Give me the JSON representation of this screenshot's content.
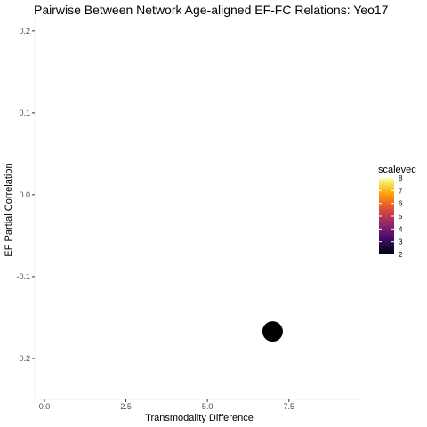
{
  "chart_data": {
    "type": "scatter",
    "title": "Pairwise Between Network Age-aligned EF-FC Relations: Yeo17",
    "xlabel": "Transmodality Difference",
    "ylabel": "EF Partial Correlation",
    "xlim": [
      -0.3,
      9.8
    ],
    "ylim": [
      -0.25,
      0.215
    ],
    "x_ticks": [
      0.0,
      2.5,
      5.0,
      7.5
    ],
    "x_tick_labels": [
      "0.0",
      "2.5",
      "5.0",
      "7.5"
    ],
    "y_ticks": [
      0.2,
      0.1,
      0.0,
      -0.1,
      -0.2
    ],
    "y_tick_labels": [
      "0.2",
      "0.1",
      "0.0",
      "-0.1",
      "-0.2"
    ],
    "grid": false,
    "points": [
      {
        "x": 7.0,
        "y": -0.167,
        "scalevec": 2
      }
    ],
    "legend": {
      "title": "scalevec",
      "position": "right",
      "min": 2,
      "max": 8,
      "ticks": [
        8,
        7,
        6,
        5,
        4,
        3,
        2
      ],
      "colors": [
        "#000004",
        "#1b0c41",
        "#4a0c6b",
        "#781c6d",
        "#a52c60",
        "#cf4446",
        "#ed6925",
        "#fb9b06",
        "#f7d13d",
        "#fcffa4"
      ]
    }
  }
}
